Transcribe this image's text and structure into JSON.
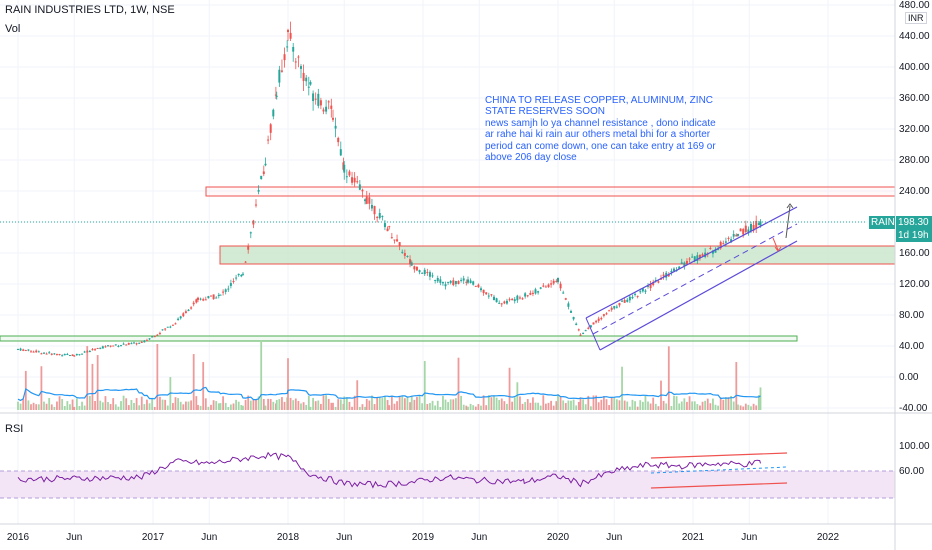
{
  "header": {
    "symbol": "RAIN INDUSTRIES LTD, 1W, NSE",
    "vol_label": "Vol",
    "rsi_label": "RSI",
    "currency": "INR"
  },
  "annotation": {
    "headline": "CHINA TO RELEASE COPPER, ALUMINUM, ZINC STATE RESERVES SOON",
    "body": "news samjh lo ya channel resistance , dono indicate ar rahe hai ki rain aur others metal bhi for a shorter period can come down, one can take entry at 169 or above 206 day close"
  },
  "last_price": {
    "ticker": "RAIN",
    "value": "198.30",
    "countdown": "1d 19h"
  },
  "colors": {
    "up": "#26a69a",
    "down": "#ef5350",
    "rsi_line": "#7b1fa2",
    "rsi_band": "#f3e5f5",
    "channel": "#5c4bd9",
    "zone_fill": "#c8e6c9",
    "zone_border": "#ef5350",
    "support_border": "#4caf50",
    "vol_ma": "#2196f3"
  },
  "chart_data": {
    "type": "candlestick",
    "price_axis": [
      "480.00",
      "440.00",
      "400.00",
      "360.00",
      "320.00",
      "280.00",
      "240.00",
      "200.00",
      "160.00",
      "120.00",
      "80.00",
      "40.00",
      "0.00",
      "-40.00"
    ],
    "rsi_axis": [
      "100.00",
      "60.00"
    ],
    "x_axis": [
      "2016",
      "Jun",
      "2017",
      "Jun",
      "2018",
      "Jun",
      "2019",
      "Jun",
      "2020",
      "Jun",
      "2021",
      "Jun",
      "2022"
    ],
    "price_path": [
      [
        "2016-01",
        36
      ],
      [
        "2016-04",
        30
      ],
      [
        "2016-06",
        28
      ],
      [
        "2016-09",
        40
      ],
      [
        "2016-12",
        44
      ],
      [
        "2017-03",
        70
      ],
      [
        "2017-05",
        100
      ],
      [
        "2017-07",
        105
      ],
      [
        "2017-09",
        135
      ],
      [
        "2017-11",
        280
      ],
      [
        "2017-12",
        370
      ],
      [
        "2018-01",
        440
      ],
      [
        "2018-03",
        370
      ],
      [
        "2018-05",
        340
      ],
      [
        "2018-06",
        270
      ],
      [
        "2018-08",
        230
      ],
      [
        "2018-10",
        190
      ],
      [
        "2018-12",
        145
      ],
      [
        "2019-03",
        120
      ],
      [
        "2019-05",
        125
      ],
      [
        "2019-08",
        95
      ],
      [
        "2019-11",
        110
      ],
      [
        "2020-01",
        125
      ],
      [
        "2020-03",
        55
      ],
      [
        "2020-06",
        90
      ],
      [
        "2020-09",
        115
      ],
      [
        "2020-12",
        145
      ],
      [
        "2021-03",
        165
      ],
      [
        "2021-05",
        185
      ],
      [
        "2021-07",
        198.3
      ]
    ],
    "rsi_path": [
      [
        "2016-01",
        47
      ],
      [
        "2016-06",
        48
      ],
      [
        "2016-12",
        50
      ],
      [
        "2017-03",
        75
      ],
      [
        "2017-06",
        72
      ],
      [
        "2017-11",
        85
      ],
      [
        "2018-01",
        82
      ],
      [
        "2018-03",
        55
      ],
      [
        "2018-06",
        40
      ],
      [
        "2018-09",
        38
      ],
      [
        "2018-12",
        42
      ],
      [
        "2019-03",
        50
      ],
      [
        "2019-06",
        45
      ],
      [
        "2019-10",
        43
      ],
      [
        "2020-01",
        52
      ],
      [
        "2020-03",
        40
      ],
      [
        "2020-06",
        60
      ],
      [
        "2020-09",
        70
      ],
      [
        "2020-12",
        68
      ],
      [
        "2021-03",
        72
      ],
      [
        "2021-06",
        71
      ],
      [
        "2021-07",
        75
      ]
    ],
    "zones": [
      {
        "name": "resistance-zone",
        "from": 230,
        "to": 240
      },
      {
        "name": "support-zone",
        "from": 150,
        "to": 165
      },
      {
        "name": "base-zone",
        "from": 48,
        "to": 52
      }
    ]
  }
}
